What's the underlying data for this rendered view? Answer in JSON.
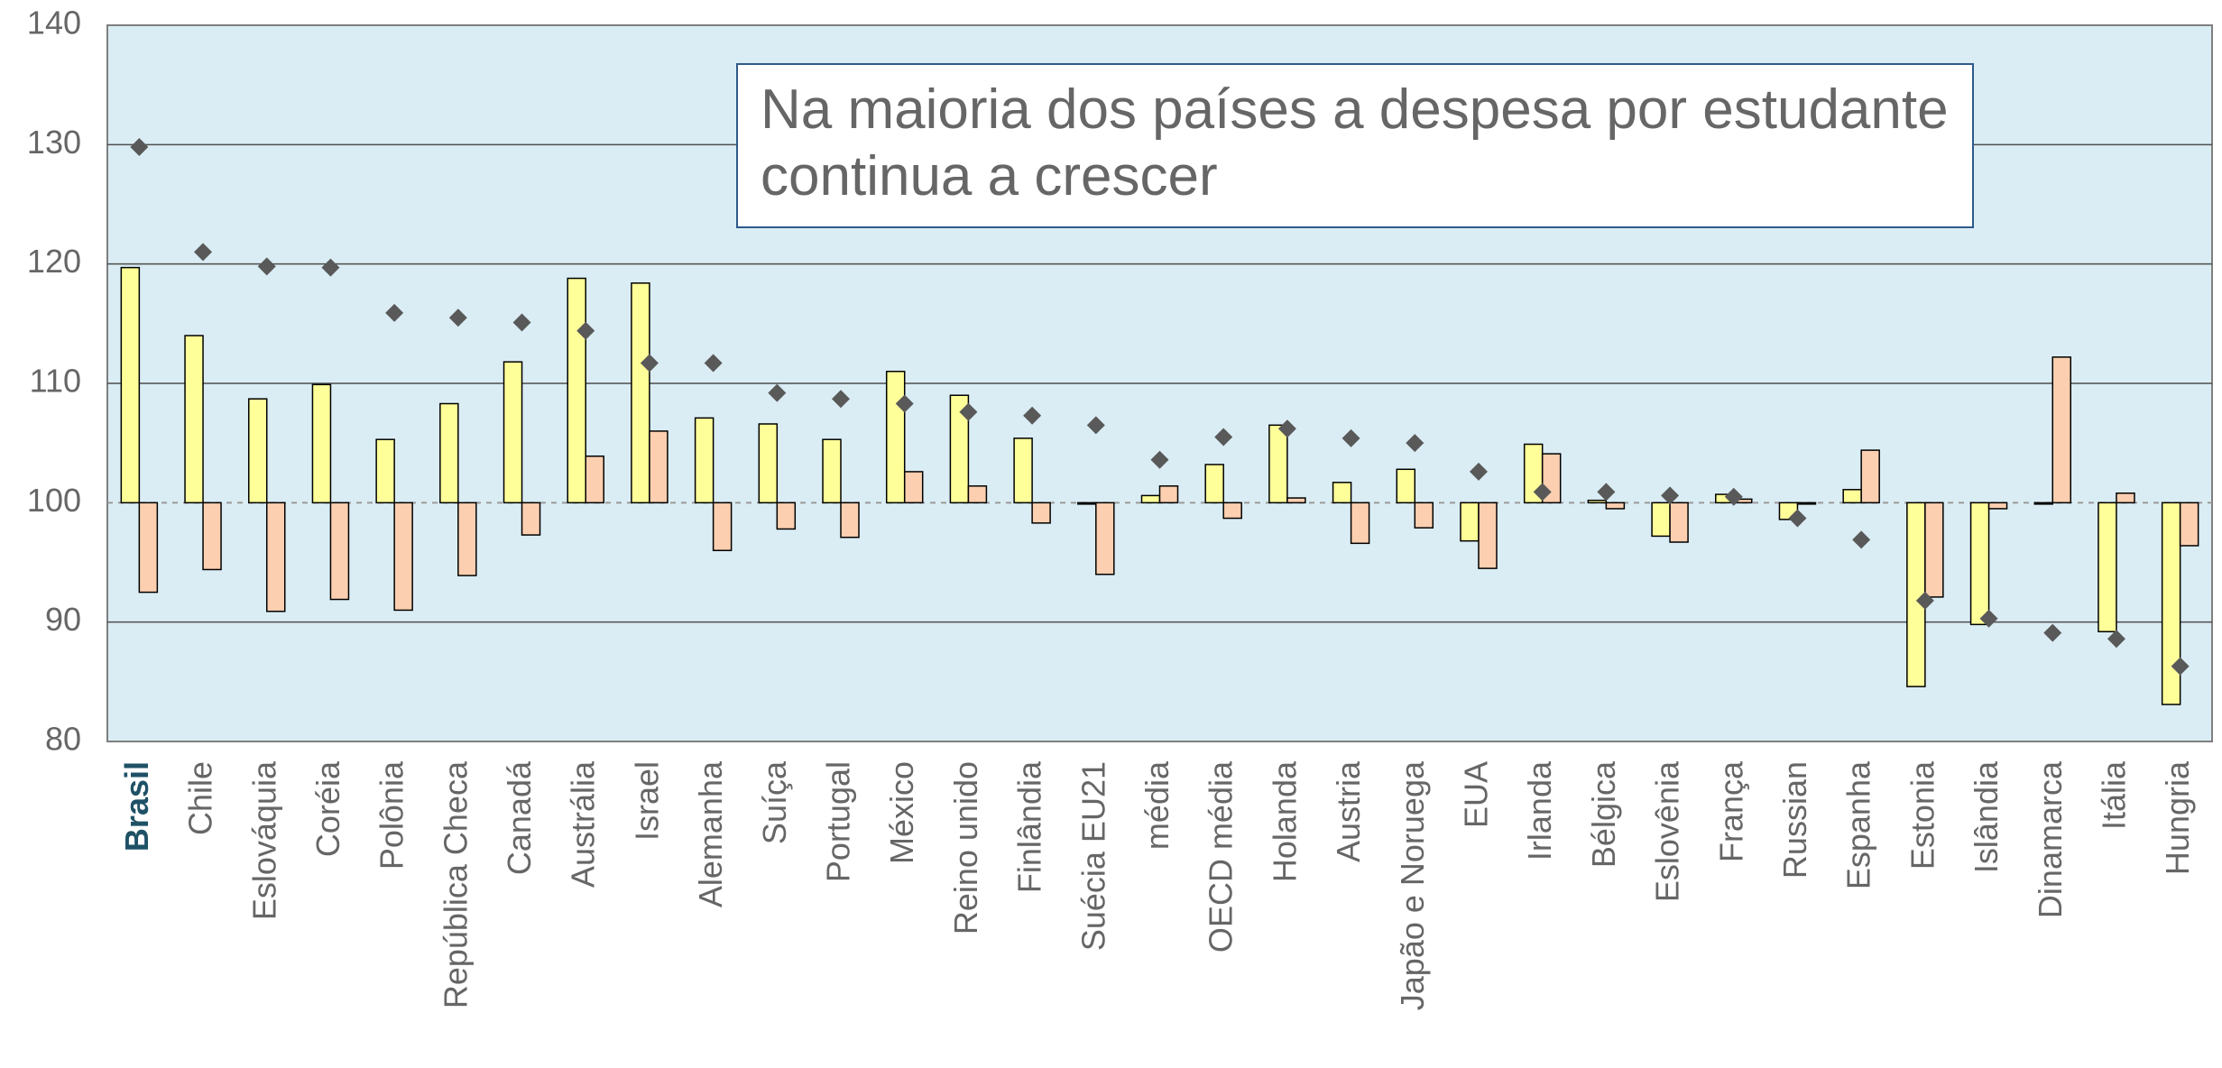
{
  "chart_data": {
    "type": "bar",
    "annotation": "Na maioria dos países a despesa por estudante continua a crescer",
    "categories": [
      "Brasil",
      "Chile",
      "Eslováquia",
      "Coréia",
      "Polônia",
      "República Checa",
      "Canadá",
      "Austrália",
      "Israel",
      "Alemanha",
      "Suíça",
      "Portugal",
      "México",
      "Reino unido",
      "Finlândia",
      "Suécia EU21",
      "média",
      "OECD média",
      "Holanda",
      "Austria",
      "Japão e Noruega",
      "EUA",
      "Irlanda",
      "Bélgica",
      "Eslovênia",
      "França",
      "Russian",
      "Espanha",
      "Estonia",
      "Islândia",
      "Dinamarca",
      "Itália",
      "Hungria"
    ],
    "highlight": "Brasil",
    "bar_base": 100,
    "series": [
      {
        "color": "#ffff99",
        "kind": "bar",
        "values": [
          119.7,
          114.0,
          108.7,
          109.9,
          105.3,
          108.3,
          111.8,
          118.8,
          118.4,
          107.1,
          106.6,
          105.3,
          111.0,
          109.0,
          105.4,
          99.9,
          100.6,
          103.2,
          106.5,
          101.7,
          102.8,
          96.8,
          104.9,
          100.2,
          97.2,
          100.7,
          98.6,
          101.1,
          84.6,
          89.8,
          99.9,
          89.2,
          83.1
        ]
      },
      {
        "color": "#fbcfb0",
        "kind": "bar",
        "values": [
          92.5,
          94.4,
          90.9,
          91.9,
          91.0,
          93.9,
          97.3,
          103.9,
          106.0,
          96.0,
          97.8,
          97.1,
          102.6,
          101.4,
          98.3,
          94.0,
          101.4,
          98.7,
          100.4,
          96.6,
          97.9,
          94.5,
          104.1,
          99.5,
          96.7,
          100.3,
          100.0,
          104.4,
          92.1,
          99.5,
          112.2,
          100.8,
          96.4
        ]
      },
      {
        "color": "#595959",
        "kind": "diamond",
        "values": [
          129.8,
          121.0,
          119.8,
          119.7,
          115.9,
          115.5,
          115.1,
          114.4,
          111.7,
          111.7,
          109.2,
          108.7,
          108.3,
          107.6,
          107.3,
          106.5,
          103.6,
          105.5,
          106.2,
          105.4,
          105.0,
          102.6,
          100.9,
          100.9,
          100.6,
          100.5,
          98.7,
          96.9,
          91.8,
          90.3,
          89.1,
          88.6,
          86.3
        ]
      }
    ],
    "ylim": [
      80,
      140
    ],
    "yticks": [
      80,
      90,
      100,
      110,
      120,
      130,
      140
    ],
    "grid": true
  }
}
